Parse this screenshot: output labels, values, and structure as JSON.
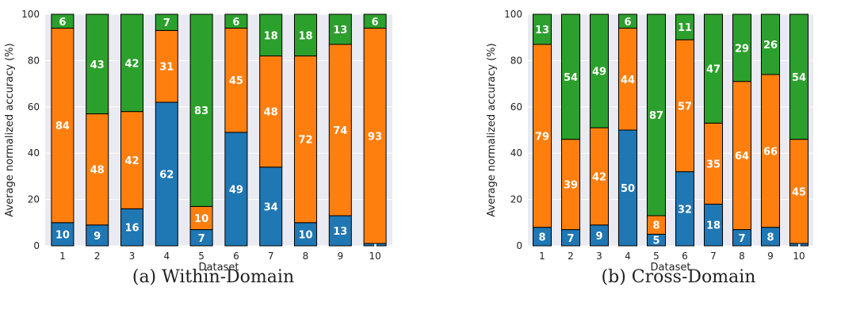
{
  "colors": {
    "blue": "#1f77b4",
    "orange": "#ff7f0e",
    "green": "#2ca02c",
    "plot_background": "#eaeaf2",
    "grid": "#ffffff",
    "bar_edge": "#000000"
  },
  "chart_data": [
    {
      "type": "bar",
      "stacked": true,
      "caption": "(a) Within-Domain",
      "xlabel": "Dataset",
      "ylabel": "Average normalized accuracy (%)",
      "ylim": [
        0,
        100
      ],
      "yticks": [
        0,
        20,
        40,
        60,
        80,
        100
      ],
      "grid": true,
      "categories": [
        "1",
        "2",
        "3",
        "4",
        "5",
        "6",
        "7",
        "8",
        "9",
        "10"
      ],
      "series": [
        {
          "color": "blue",
          "values": [
            10,
            9,
            16,
            62,
            7,
            49,
            34,
            10,
            13,
            1
          ]
        },
        {
          "color": "orange",
          "values": [
            84,
            48,
            42,
            31,
            10,
            45,
            48,
            72,
            74,
            93
          ]
        },
        {
          "color": "green",
          "values": [
            6,
            43,
            42,
            7,
            83,
            6,
            18,
            18,
            13,
            6
          ]
        }
      ]
    },
    {
      "type": "bar",
      "stacked": true,
      "caption": "(b) Cross-Domain",
      "xlabel": "Dataset",
      "ylabel": "Average normalized accuracy (%)",
      "ylim": [
        0,
        100
      ],
      "yticks": [
        0,
        20,
        40,
        60,
        80,
        100
      ],
      "grid": true,
      "categories": [
        "1",
        "2",
        "3",
        "4",
        "5",
        "6",
        "7",
        "8",
        "9",
        "10"
      ],
      "series": [
        {
          "color": "blue",
          "values": [
            8,
            7,
            9,
            50,
            5,
            32,
            18,
            7,
            8,
            1
          ]
        },
        {
          "color": "orange",
          "values": [
            79,
            39,
            42,
            44,
            8,
            57,
            35,
            64,
            66,
            45
          ]
        },
        {
          "color": "green",
          "values": [
            13,
            54,
            49,
            6,
            87,
            11,
            47,
            29,
            26,
            54
          ]
        }
      ]
    }
  ]
}
